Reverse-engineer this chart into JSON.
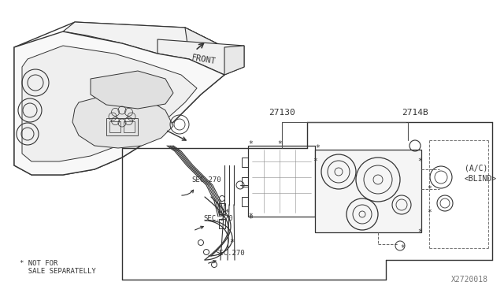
{
  "bg_color": "#ffffff",
  "line_color": "#333333",
  "text_color": "#333333",
  "labels": {
    "front": "FRONT",
    "part1": "27130",
    "part2": "2714B",
    "ac_blind": "(A/C)\n<BLIND>",
    "sec270_1": "SEC.270",
    "sec270_2": "SEC.270",
    "sec270_3": "SEC.270",
    "not_for_sale_1": "* NOT FOR",
    "not_for_sale_2": "  SALE SEPARATELLY",
    "diagram_id": "X2720018"
  },
  "figsize": [
    6.4,
    3.72
  ],
  "dpi": 100
}
